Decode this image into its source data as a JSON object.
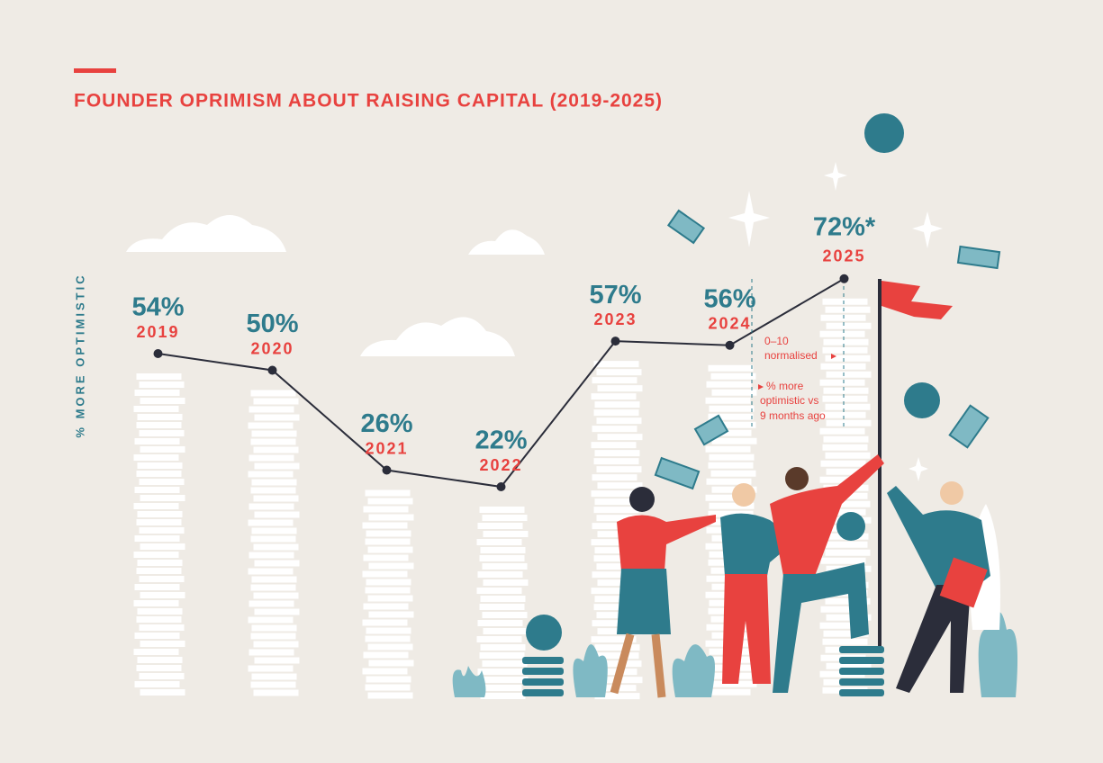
{
  "chart_data": {
    "type": "line",
    "title": "FOUNDER OPRIMISM ABOUT RAISING CAPITAL (2019-2025)",
    "y_label": "% MORE OPTIMISTIC",
    "categories": [
      "2019",
      "2020",
      "2021",
      "2022",
      "2023",
      "2024",
      "2025"
    ],
    "values": [
      54,
      50,
      26,
      22,
      57,
      56,
      72
    ],
    "value_labels": [
      "54%",
      "50%",
      "26%",
      "22%",
      "57%",
      "56%",
      "72%*"
    ],
    "color": "#2b2d3a",
    "ylim": [
      0,
      100
    ],
    "annotations": [
      [
        "0–10",
        "normalised"
      ],
      [
        "% more",
        "optimistic vs",
        "9 months ago"
      ]
    ]
  }
}
